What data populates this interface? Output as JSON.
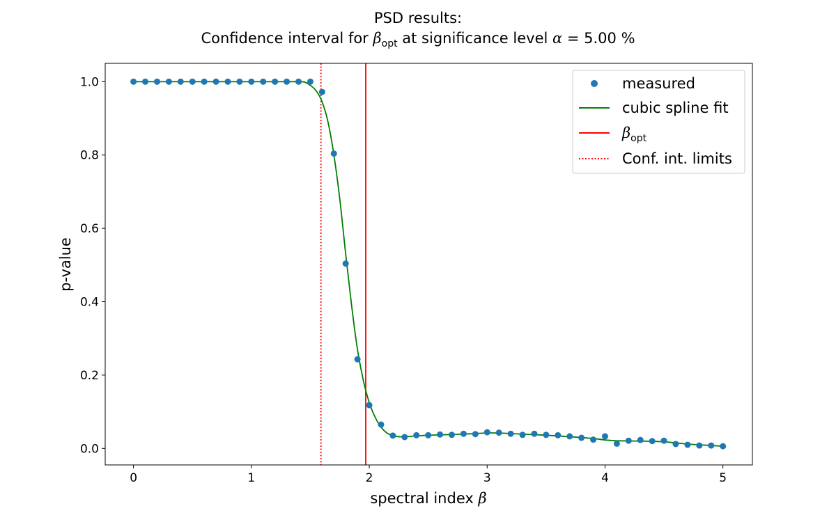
{
  "chart_data": {
    "type": "scatter",
    "title_line1": "PSD results:",
    "title_line2_prefix": "Confidence interval for ",
    "title_beta": "β",
    "title_opt_sub": "opt",
    "title_line2_middle": " at significance level ",
    "title_alpha": "α",
    "title_line2_value": " = 5.00 %",
    "xlabel_text": "spectral index ",
    "xlabel_symbol": "β",
    "ylabel": "p-value",
    "xlim": [
      -0.24,
      5.25
    ],
    "ylim": [
      -0.045,
      1.05
    ],
    "x_ticks": [
      0,
      1,
      2,
      3,
      4,
      5
    ],
    "x_tick_labels": [
      "0",
      "1",
      "2",
      "3",
      "4",
      "5"
    ],
    "y_ticks": [
      0.0,
      0.2,
      0.4,
      0.6,
      0.8,
      1.0
    ],
    "y_tick_labels": [
      "0.0",
      "0.2",
      "0.4",
      "0.6",
      "0.8",
      "1.0"
    ],
    "grid": false,
    "legend_position": "top-right",
    "legend": {
      "measured": "measured",
      "spline": "cubic spline fit",
      "beta_symbol": "β",
      "beta_sub": "opt",
      "limits": "Conf. int. limits"
    },
    "colors": {
      "measured": "#1f77b4",
      "spline": "#008000",
      "beta_opt": "#ff0000",
      "limits": "#ff0000"
    },
    "measured": {
      "x": [
        0.0,
        0.1,
        0.2,
        0.3,
        0.4,
        0.5,
        0.6,
        0.7,
        0.8,
        0.9,
        1.0,
        1.1,
        1.2,
        1.3,
        1.4,
        1.5,
        1.6,
        1.7,
        1.8,
        1.9,
        2.0,
        2.1,
        2.2,
        2.3,
        2.4,
        2.5,
        2.6,
        2.7,
        2.8,
        2.9,
        3.0,
        3.1,
        3.2,
        3.3,
        3.4,
        3.5,
        3.6,
        3.7,
        3.8,
        3.9,
        4.0,
        4.1,
        4.2,
        4.3,
        4.4,
        4.5,
        4.6,
        4.7,
        4.8,
        4.9,
        5.0
      ],
      "y": [
        1.0,
        1.0,
        1.0,
        1.0,
        1.0,
        1.0,
        1.0,
        1.0,
        1.0,
        1.0,
        1.0,
        1.0,
        1.0,
        1.0,
        1.0,
        1.0,
        0.972,
        0.804,
        0.504,
        0.243,
        0.118,
        0.065,
        0.035,
        0.031,
        0.036,
        0.036,
        0.038,
        0.037,
        0.04,
        0.039,
        0.044,
        0.043,
        0.04,
        0.037,
        0.04,
        0.037,
        0.036,
        0.033,
        0.029,
        0.024,
        0.033,
        0.013,
        0.021,
        0.023,
        0.02,
        0.021,
        0.012,
        0.01,
        0.008,
        0.008,
        0.006
      ]
    },
    "spline_fit": {
      "x": [
        0.0,
        0.5,
        1.0,
        1.3,
        1.4,
        1.45,
        1.5,
        1.55,
        1.6,
        1.65,
        1.7,
        1.75,
        1.8,
        1.85,
        1.9,
        1.95,
        2.0,
        2.05,
        2.1,
        2.15,
        2.2,
        2.25,
        2.3,
        2.4,
        2.5,
        2.6,
        2.8,
        3.0,
        3.1,
        3.3,
        3.5,
        3.7,
        3.9,
        4.0,
        4.1,
        4.3,
        4.5,
        4.7,
        4.9,
        5.0
      ],
      "y": [
        1.0,
        1.0,
        1.0,
        1.0,
        1.0,
        0.999,
        0.99,
        0.975,
        0.945,
        0.89,
        0.8,
        0.68,
        0.53,
        0.39,
        0.27,
        0.185,
        0.125,
        0.085,
        0.058,
        0.042,
        0.035,
        0.032,
        0.032,
        0.034,
        0.036,
        0.037,
        0.039,
        0.042,
        0.042,
        0.039,
        0.036,
        0.032,
        0.027,
        0.023,
        0.021,
        0.02,
        0.018,
        0.012,
        0.008,
        0.006
      ]
    },
    "beta_opt": 1.97,
    "conf_int_limits": [
      1.59
    ]
  }
}
